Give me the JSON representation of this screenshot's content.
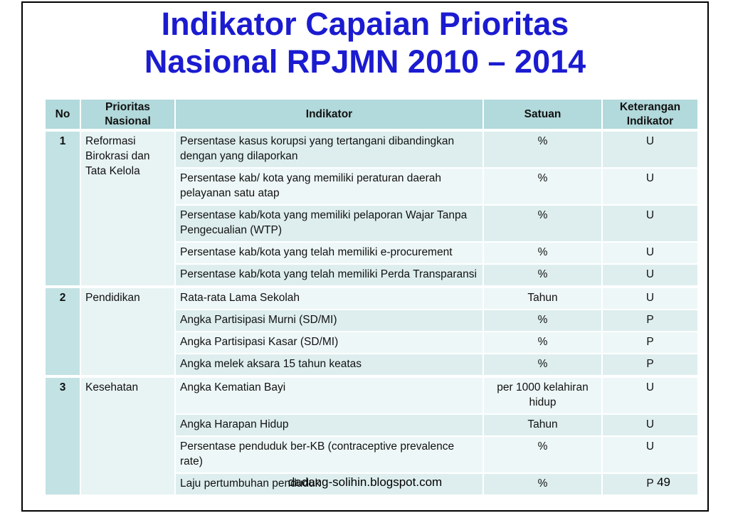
{
  "slide": {
    "title_line1": "Indikator Capaian Prioritas",
    "title_line2": "Nasional RPJMN 2010 – 2014",
    "footer": "dadang-solihin.blogspot.com",
    "page_number": "49"
  },
  "table": {
    "headers": [
      "No",
      "Prioritas Nasional",
      "Indikator",
      "Satuan",
      "Keterangan Indikator"
    ],
    "groups": [
      {
        "no": "1",
        "priority": "Reformasi Birokrasi dan Tata Kelola",
        "rows": [
          {
            "indikator": "Persentase kasus korupsi yang tertangani dibandingkan dengan yang dilaporkan",
            "satuan": "%",
            "keterangan": "U"
          },
          {
            "indikator": "Persentase kab/ kota yang memiliki peraturan daerah pelayanan satu atap",
            "satuan": "%",
            "keterangan": "U"
          },
          {
            "indikator": "Persentase kab/kota yang memiliki pelaporan Wajar Tanpa Pengecualian (WTP)",
            "satuan": "%",
            "keterangan": "U"
          },
          {
            "indikator": "Persentase kab/kota yang telah memiliki e-procurement",
            "satuan": "%",
            "keterangan": "U"
          },
          {
            "indikator": "Persentase kab/kota yang telah memiliki Perda Transparansi",
            "satuan": "%",
            "keterangan": "U"
          }
        ]
      },
      {
        "no": "2",
        "priority": "Pendidikan",
        "rows": [
          {
            "indikator": "Rata-rata Lama Sekolah",
            "satuan": "Tahun",
            "keterangan": "U"
          },
          {
            "indikator": "Angka Partisipasi Murni (SD/MI)",
            "satuan": "%",
            "keterangan": "P"
          },
          {
            "indikator": "Angka Partisipasi Kasar (SD/MI)",
            "satuan": "%",
            "keterangan": "P"
          },
          {
            "indikator": "Angka melek aksara  15 tahun keatas",
            "satuan": "%",
            "keterangan": "P"
          }
        ]
      },
      {
        "no": "3",
        "priority": "Kesehatan",
        "rows": [
          {
            "indikator": "Angka Kematian Bayi",
            "satuan": "per 1000 kelahiran hidup",
            "keterangan": "U"
          },
          {
            "indikator": "Angka Harapan Hidup",
            "satuan": "Tahun",
            "keterangan": "U"
          },
          {
            "indikator": "Persentase  penduduk ber-KB (contraceptive prevalence rate)",
            "satuan": "%",
            "keterangan": "U"
          },
          {
            "indikator": "Laju pertumbuhan penduduk",
            "satuan": "%",
            "keterangan": "P"
          }
        ]
      }
    ]
  },
  "colors": {
    "title_blue": "#1b1bd0",
    "header_bg": "#b2d9db",
    "no_column_bg": "#c3e2e4",
    "priority_bg": "#e8f3f3",
    "row_band_dark": "#deeeee",
    "row_band_light": "#eef7f7",
    "slide_border": "#000000"
  }
}
